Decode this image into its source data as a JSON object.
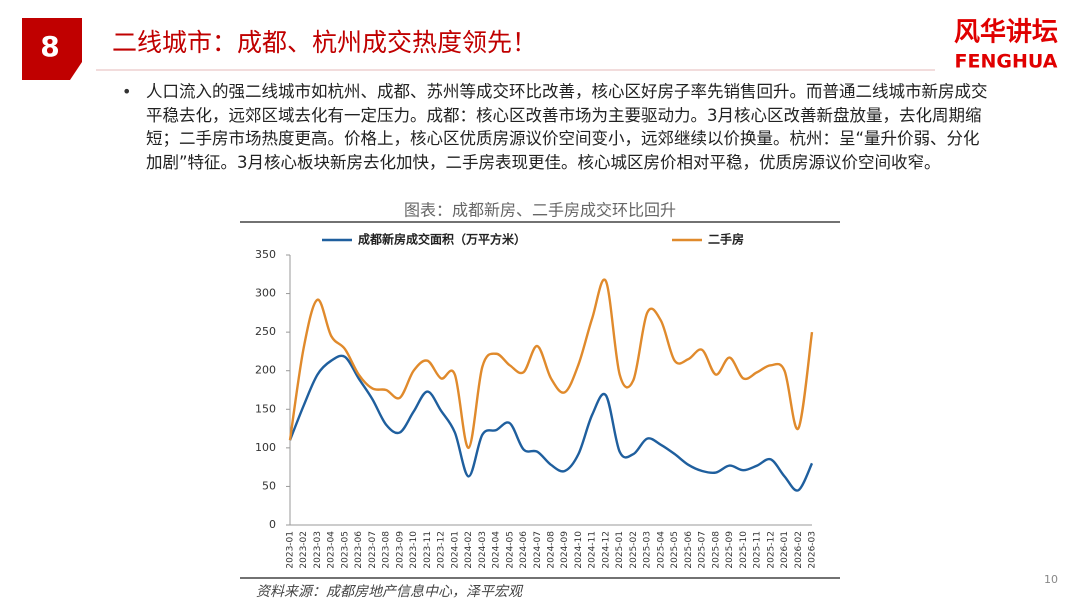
{
  "slide": {
    "number_badge": "8",
    "title": "二线城市：成都、杭州成交热度领先！",
    "logo_cn": "风华讲坛",
    "logo_en": "FENGHUA",
    "bullet": "人口流入的强二线城市如杭州、成都、苏州等成交环比改善，核心区好房子率先销售回升。而普通二线城市新房成交平稳去化，远郊区域去化有一定压力。成都：核心区改善市场为主要驱动力。3月核心区改善新盘放量，去化周期缩短；二手房市场热度更高。价格上，核心区优质房源议价空间变小，远郊继续以价换量。杭州：呈“量升价弱、分化加剧”特征。3月核心板块新房去化加快，二手房表现更佳。核心城区房价相对平稳，优质房源议价空间收窄。",
    "page_number": "10"
  },
  "chart_data": {
    "type": "line",
    "title": "图表：成都新房、二手房成交环比回升",
    "source": "资料来源：成都房地产信息中心，泽平宏观",
    "categories": [
      "2023-01",
      "2023-02",
      "2023-03",
      "2023-04",
      "2023-05",
      "2023-06",
      "2023-07",
      "2023-08",
      "2023-09",
      "2023-10",
      "2023-11",
      "2023-12",
      "2024-01",
      "2024-02",
      "2024-03",
      "2024-04",
      "2024-05",
      "2024-06",
      "2024-07",
      "2024-08",
      "2024-09",
      "2024-10",
      "2024-11",
      "2024-12",
      "2025-01",
      "2025-02",
      "2025-03",
      "2025-04",
      "2025-05",
      "2025-06",
      "2025-07",
      "2025-08",
      "2025-09",
      "2025-10",
      "2025-11",
      "2025-12",
      "2026-01",
      "2026-02",
      "2026-03"
    ],
    "series": [
      {
        "name": "成都新房成交面积（万平方米）",
        "color": "#1f5f9e",
        "values": [
          110,
          155,
          195,
          213,
          218,
          190,
          163,
          130,
          120,
          147,
          173,
          148,
          120,
          63,
          117,
          123,
          132,
          98,
          95,
          78,
          70,
          92,
          143,
          168,
          95,
          92,
          112,
          104,
          92,
          78,
          70,
          68,
          77,
          71,
          77,
          85,
          63,
          45,
          80
        ]
      },
      {
        "name": "二手房",
        "color": "#e08a2c",
        "values": [
          110,
          230,
          292,
          245,
          228,
          195,
          177,
          175,
          165,
          200,
          213,
          190,
          195,
          100,
          205,
          222,
          207,
          198,
          232,
          190,
          172,
          208,
          268,
          316,
          195,
          188,
          275,
          265,
          213,
          215,
          227,
          195,
          217,
          190,
          198,
          207,
          200,
          125,
          250
        ]
      }
    ],
    "ylim": [
      0,
      350
    ],
    "yticks": [
      0,
      50,
      100,
      150,
      200,
      250,
      300,
      350
    ],
    "grid": false,
    "legend": "top",
    "smooth": true
  }
}
